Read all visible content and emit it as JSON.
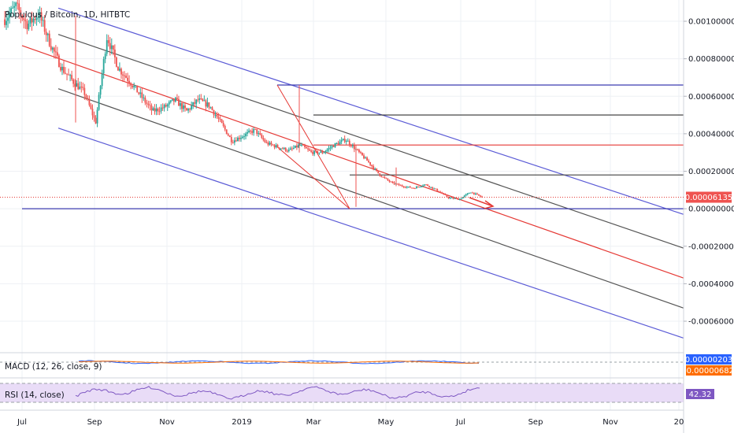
{
  "chart_data": [
    {
      "type": "candlestick",
      "title": "Populous / Bitcoin, 1D, HITBTC",
      "x_ticks": [
        "Jul",
        "Sep",
        "Nov",
        "2019",
        "Mar",
        "May",
        "Jul",
        "Sep",
        "Nov",
        "20"
      ],
      "y_ticks": [
        "0.00100000",
        "0.00080000",
        "0.00060000",
        "0.00040000",
        "0.00020000",
        "0.00000000",
        "-0.00020000",
        "-0.00040000",
        "-0.00060000"
      ],
      "ylim": [
        -0.0007,
        0.0011
      ],
      "last_price_label": "0.00006135",
      "last_price": 6.135e-05,
      "series": [
        {
          "name": "price",
          "points": [
            [
              "Jul",
              0.00101
            ],
            [
              "Jul",
              0.00108
            ],
            [
              "Jul",
              0.00098
            ],
            [
              "Jul",
              0.00104
            ],
            [
              "Aug",
              0.00088
            ],
            [
              "Aug",
              0.00075
            ],
            [
              "Aug",
              0.00068
            ],
            [
              "Aug",
              0.00062
            ],
            [
              "Aug",
              0.00046
            ],
            [
              "Aug",
              0.00092
            ],
            [
              "Sep",
              0.00075
            ],
            [
              "Sep",
              0.00068
            ],
            [
              "Sep",
              0.0006
            ],
            [
              "Sep",
              0.00052
            ],
            [
              "Oct",
              0.00054
            ],
            [
              "Oct",
              0.00058
            ],
            [
              "Oct",
              0.00052
            ],
            [
              "Nov",
              0.00058
            ],
            [
              "Nov",
              0.00055
            ],
            [
              "Nov",
              0.00046
            ],
            [
              "Dec",
              0.00036
            ],
            [
              "Dec",
              0.00039
            ],
            [
              "Dec",
              0.00042
            ],
            [
              "2019",
              0.00035
            ],
            [
              "2019",
              0.00033
            ],
            [
              "Feb",
              0.00031
            ],
            [
              "Feb",
              0.00034
            ],
            [
              "Feb",
              0.0003
            ],
            [
              "Mar",
              0.0003
            ],
            [
              "Mar",
              0.00034
            ],
            [
              "Mar",
              0.00037
            ],
            [
              "Mar",
              0.00031
            ],
            [
              "Apr",
              0.00025
            ],
            [
              "Apr",
              0.00018
            ],
            [
              "Apr",
              0.00014
            ],
            [
              "May",
              0.00012
            ],
            [
              "May",
              0.00011
            ],
            [
              "May",
              0.00013
            ],
            [
              "Jun",
              0.0001
            ],
            [
              "Jun",
              6e-05
            ],
            [
              "Jun",
              5e-05
            ],
            [
              "Jul",
              9e-05
            ],
            [
              "Jul",
              6.135e-05
            ]
          ]
        }
      ],
      "drawings": [
        {
          "name": "channel-upper",
          "color": "#5b5bd6",
          "points": [
            [
              "Aug",
              0.00107
            ],
            [
              "20",
              -3e-05
            ]
          ]
        },
        {
          "name": "channel-inner-upper",
          "color": "#555555",
          "points": [
            [
              "Aug",
              0.00093
            ],
            [
              "20",
              -0.00021
            ]
          ]
        },
        {
          "name": "channel-median",
          "color": "#e53935",
          "points": [
            [
              "Jul",
              0.00087
            ],
            [
              "20",
              -0.00037
            ]
          ]
        },
        {
          "name": "channel-inner-lower",
          "color": "#555555",
          "points": [
            [
              "Aug",
              0.00064
            ],
            [
              "20",
              -0.00053
            ]
          ]
        },
        {
          "name": "channel-lower",
          "color": "#5b5bd6",
          "points": [
            [
              "Aug",
              0.00043
            ],
            [
              "20",
              -0.00069
            ]
          ]
        },
        {
          "name": "level-top",
          "color": "#3c3cb0",
          "points": [
            [
              "Feb",
              0.00066
            ],
            [
              "20",
              0.00066
            ]
          ]
        },
        {
          "name": "level-2",
          "color": "#333333",
          "points": [
            [
              "Mar",
              0.0005
            ],
            [
              "20",
              0.0005
            ]
          ]
        },
        {
          "name": "level-3",
          "color": "#e53935",
          "points": [
            [
              "Mar",
              0.00034
            ],
            [
              "20",
              0.00034
            ]
          ]
        },
        {
          "name": "level-4",
          "color": "#555555",
          "points": [
            [
              "Apr",
              0.00018
            ],
            [
              "20",
              0.00018
            ]
          ]
        },
        {
          "name": "level-zero",
          "color": "#3c3cb0",
          "points": [
            [
              "Jul",
              0.0
            ],
            [
              "20",
              0.0
            ]
          ]
        },
        {
          "name": "triangle",
          "color": "#e53935",
          "points": [
            [
              "Feb",
              0.00066
            ],
            [
              "Apr",
              0.0
            ],
            [
              "Feb",
              0.00033
            ]
          ]
        }
      ]
    },
    {
      "type": "line",
      "title": "MACD (12, 26, close, 9)",
      "value_labels": [
        "0.00000203",
        "-0.00000682"
      ]
    },
    {
      "type": "line",
      "title": "RSI (14, close)",
      "value_labels": [
        "42.32"
      ]
    }
  ]
}
